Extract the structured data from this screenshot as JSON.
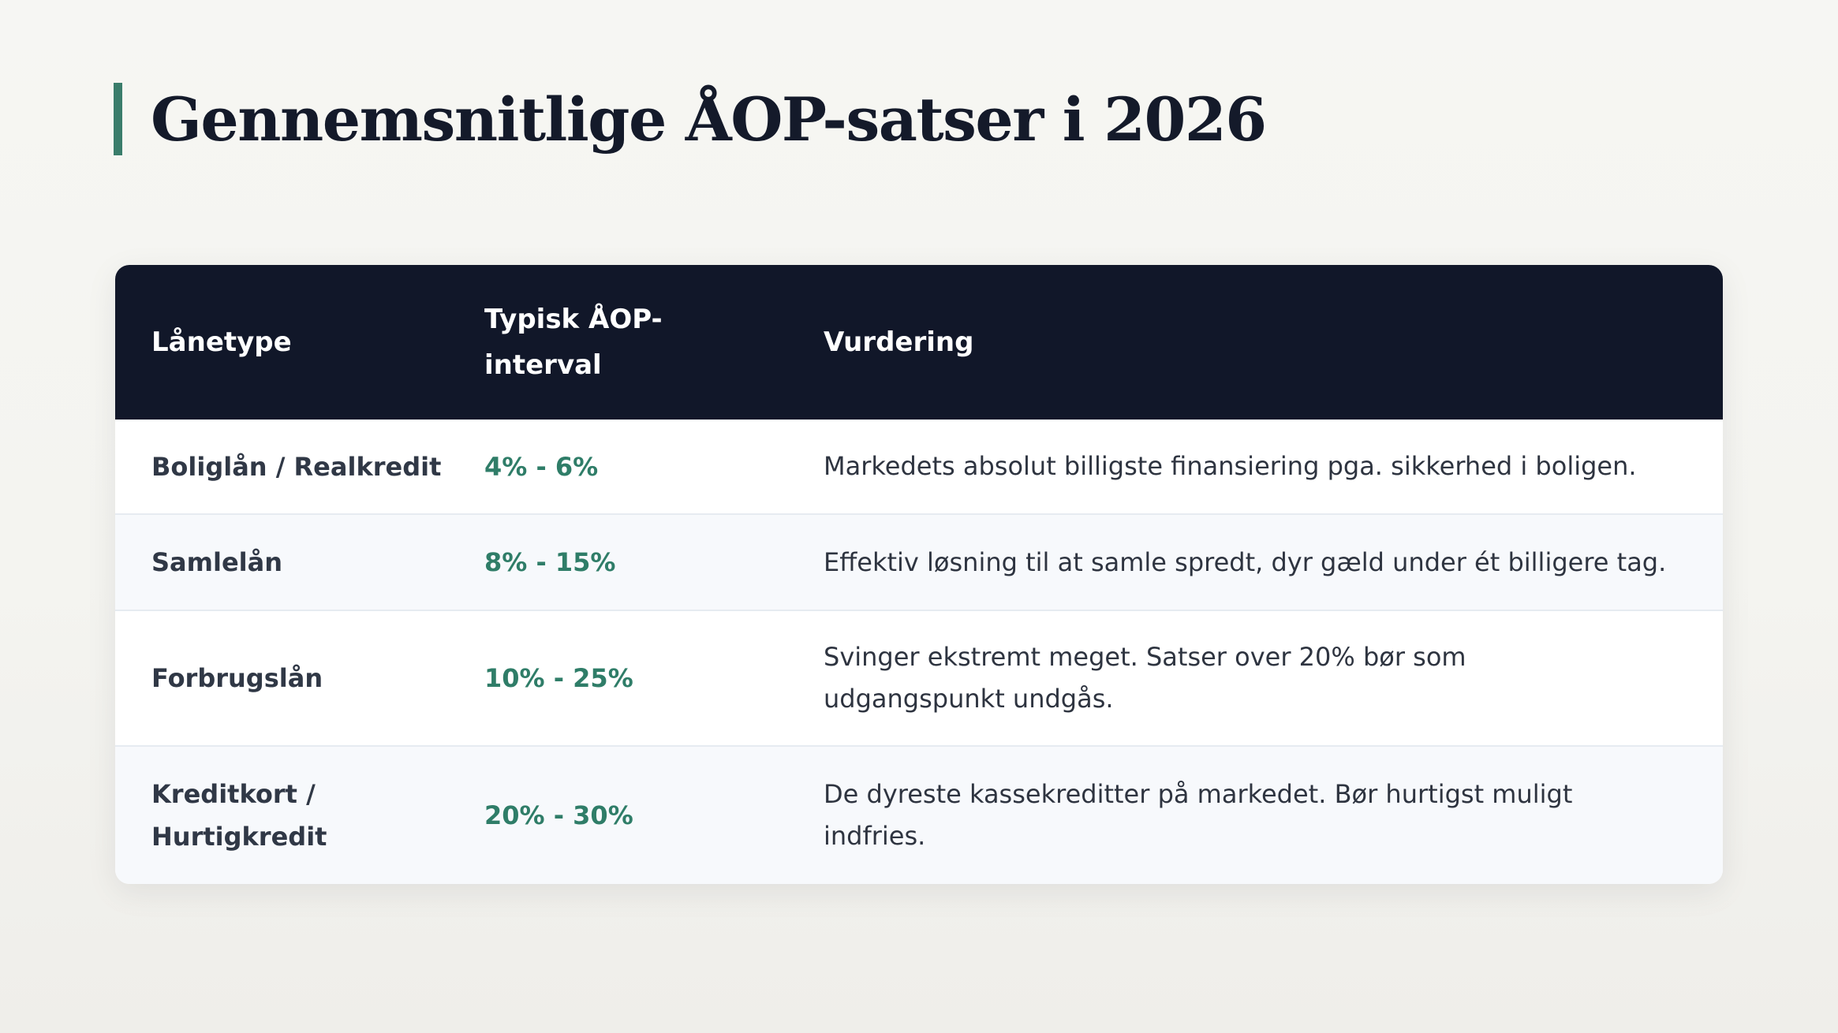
{
  "title": "Gennemsnitlige ÅOP-satser i 2026",
  "accent_color": "#3a7d6b",
  "table": {
    "headers": [
      "Lånetype",
      "Typisk ÅOP-interval",
      "Vurdering"
    ],
    "rows": [
      {
        "type": "Boliglån / Realkredit",
        "rate": "4% - 6%",
        "assessment": "Markedets absolut billigste finansiering pga. sikkerhed i boligen."
      },
      {
        "type": "Samlelån",
        "rate": "8% - 15%",
        "assessment": "Effektiv løsning til at samle spredt, dyr gæld under ét billigere tag."
      },
      {
        "type": "Forbrugslån",
        "rate": "10% - 25%",
        "assessment": "Svinger ekstremt meget. Satser over 20% bør som udgangspunkt undgås."
      },
      {
        "type": "Kreditkort / Hurtigkredit",
        "rate": "20% - 30%",
        "assessment": "De dyreste kassekreditter på markedet. Bør hurtigst muligt indfries."
      }
    ]
  }
}
